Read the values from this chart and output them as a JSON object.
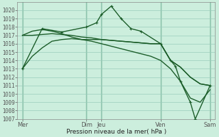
{
  "background_color": "#cceedd",
  "grid_color": "#99ccbb",
  "grid_dark_color": "#66aa88",
  "line_color": "#1a5c28",
  "xlabel": "Pression niveau de la mer( hPa )",
  "ylim": [
    1007,
    1021
  ],
  "xlim": [
    0,
    20
  ],
  "yticks": [
    1007,
    1008,
    1009,
    1010,
    1011,
    1012,
    1013,
    1014,
    1015,
    1016,
    1017,
    1018,
    1019,
    1020
  ],
  "day_positions": [
    0.5,
    7,
    8.5,
    14.5,
    19.5
  ],
  "day_labels": [
    "Mer",
    "Dim",
    "Jeu",
    "Ven",
    "Sam"
  ],
  "dark_vlines": [
    0.5,
    7,
    8.5,
    14.5,
    19.5
  ],
  "series": [
    {
      "x": [
        0.5,
        1.5,
        2.5,
        3.5,
        4.5,
        5.5,
        6.5,
        7.5,
        8.5,
        9.5,
        10.5,
        11.5,
        12.5,
        13.5,
        14.5,
        15.5,
        16.5,
        17.5,
        18.5,
        19.5
      ],
      "y": [
        1013.0,
        1014.5,
        1015.5,
        1016.3,
        1016.5,
        1016.6,
        1016.5,
        1016.5,
        1016.5,
        1016.4,
        1016.3,
        1016.2,
        1016.1,
        1016.0,
        1016.0,
        1014.0,
        1013.2,
        1012.0,
        1011.2,
        1011.0
      ],
      "marker": false,
      "linewidth": 1.0
    },
    {
      "x": [
        0.5,
        1.5,
        2.5,
        3.5,
        4.5,
        5.5,
        6.5,
        7.5,
        8.5,
        9.5,
        10.5,
        11.5,
        12.5,
        13.5,
        14.5,
        15.5,
        16.5,
        17.5,
        18.5,
        19.5
      ],
      "y": [
        1017.0,
        1017.0,
        1017.1,
        1017.2,
        1017.1,
        1017.0,
        1016.8,
        1016.7,
        1016.5,
        1016.4,
        1016.3,
        1016.2,
        1016.1,
        1016.0,
        1016.0,
        1014.0,
        1013.2,
        1012.0,
        1011.2,
        1011.0
      ],
      "marker": false,
      "linewidth": 1.0
    },
    {
      "x": [
        0.5,
        1.5,
        2.5,
        3.5,
        4.5,
        5.5,
        6.5,
        7.5,
        8.5,
        9.5,
        10.5,
        11.5,
        12.5,
        13.5,
        14.5,
        15.5,
        16.5,
        17.5,
        18.5,
        19.5
      ],
      "y": [
        1017.0,
        1017.5,
        1017.7,
        1017.5,
        1017.2,
        1016.8,
        1016.5,
        1016.3,
        1016.0,
        1015.7,
        1015.4,
        1015.1,
        1014.8,
        1014.5,
        1014.0,
        1013.0,
        1011.5,
        1009.5,
        1009.0,
        1010.5
      ],
      "marker": false,
      "linewidth": 1.0
    },
    {
      "x": [
        0.5,
        2.5,
        4.5,
        7.0,
        8.0,
        8.5,
        9.5,
        10.5,
        11.5,
        12.5,
        14.5,
        15.5,
        16.0,
        16.5,
        17.5,
        18.0,
        19.5
      ],
      "y": [
        1013.0,
        1017.8,
        1017.4,
        1018.0,
        1018.5,
        1019.5,
        1020.5,
        1019.0,
        1017.8,
        1017.5,
        1016.0,
        1014.0,
        1013.3,
        1011.5,
        1009.0,
        1007.0,
        1011.0
      ],
      "marker": true,
      "linewidth": 1.0
    }
  ]
}
